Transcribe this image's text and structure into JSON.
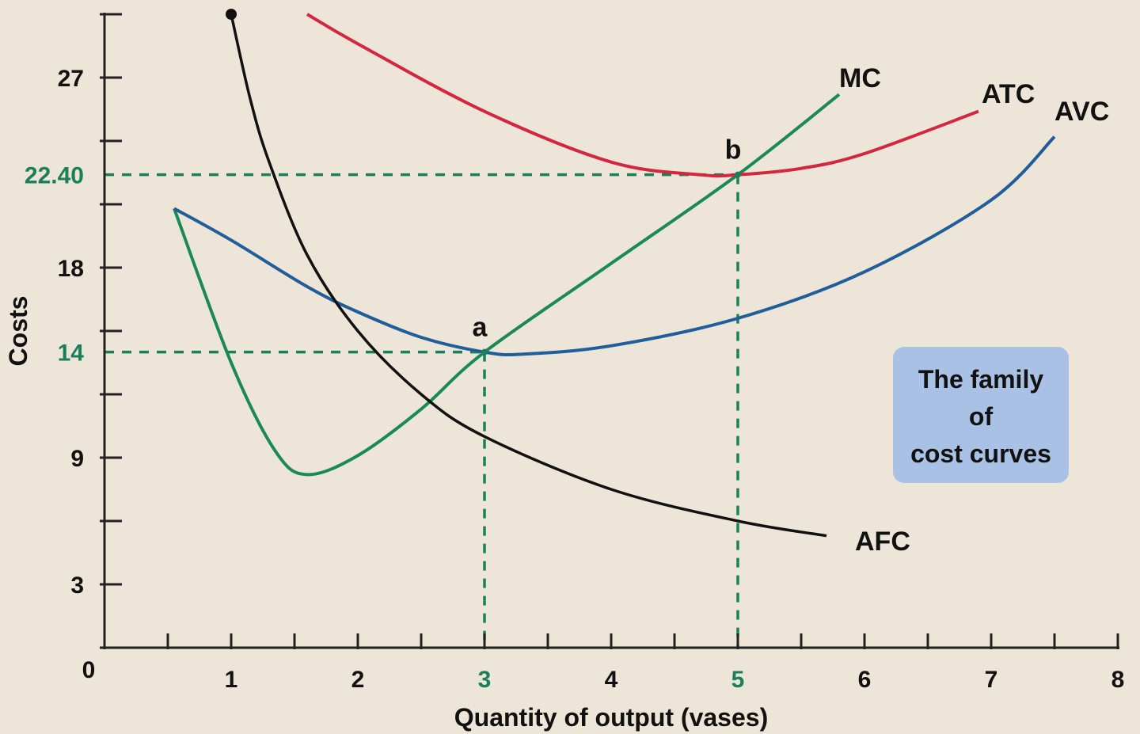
{
  "chart_data": {
    "type": "line",
    "xlabel": "Quantity of output (vases)",
    "ylabel": "Costs",
    "xlim": [
      0,
      8
    ],
    "ylim": [
      0,
      30
    ],
    "origin_label": "0",
    "x_ticks": [
      1,
      2,
      3,
      4,
      5,
      6,
      7,
      8
    ],
    "x_tick_labels": [
      "1",
      "2",
      "3",
      "4",
      "5",
      "6",
      "7",
      "8"
    ],
    "highlighted_x": [
      3,
      5
    ],
    "y_ticks": [
      3,
      9,
      18,
      27
    ],
    "y_tick_labels": [
      "3",
      "9",
      "18",
      "27"
    ],
    "highlighted_y": [
      14,
      22.4
    ],
    "highlighted_y_labels": [
      "14",
      "22.40"
    ],
    "grid": false,
    "series": [
      {
        "name": "MC",
        "color": "#1a8a55",
        "points": [
          [
            0.55,
            20.8
          ],
          [
            1.0,
            13.5
          ],
          [
            1.35,
            9.3
          ],
          [
            1.6,
            8.2
          ],
          [
            2.0,
            9.1
          ],
          [
            2.5,
            11.3
          ],
          [
            3,
            14
          ],
          [
            4,
            18.2
          ],
          [
            5,
            22.4
          ],
          [
            5.8,
            26.2
          ]
        ]
      },
      {
        "name": "ATC",
        "color": "#d3263f",
        "points": [
          [
            1.6,
            30
          ],
          [
            2,
            28.6
          ],
          [
            3,
            25.4
          ],
          [
            4,
            23.0
          ],
          [
            4.7,
            22.4
          ],
          [
            5,
            22.4
          ],
          [
            5.5,
            22.7
          ],
          [
            6,
            23.4
          ],
          [
            6.9,
            25.4
          ]
        ]
      },
      {
        "name": "AVC",
        "color": "#1f5e9a",
        "points": [
          [
            0.55,
            20.8
          ],
          [
            1,
            19.3
          ],
          [
            1.6,
            17.1
          ],
          [
            2,
            15.9
          ],
          [
            2.5,
            14.7
          ],
          [
            3,
            14
          ],
          [
            3.3,
            13.9
          ],
          [
            4,
            14.3
          ],
          [
            5,
            15.6
          ],
          [
            6,
            17.8
          ],
          [
            7,
            21.2
          ],
          [
            7.5,
            24.2
          ]
        ]
      },
      {
        "name": "AFC",
        "color": "#111111",
        "points": [
          [
            1,
            30
          ],
          [
            1.15,
            26
          ],
          [
            1.3,
            23
          ],
          [
            1.6,
            18.6
          ],
          [
            2,
            15
          ],
          [
            2.5,
            12
          ],
          [
            3,
            10
          ],
          [
            4,
            7.5
          ],
          [
            5,
            6
          ],
          [
            5.7,
            5.3
          ]
        ]
      }
    ],
    "annotations": [
      {
        "text": "a",
        "x": 3,
        "y": 14
      },
      {
        "text": "b",
        "x": 5,
        "y": 22.4
      }
    ],
    "note": "The family of cost curves",
    "note_lines": [
      "The family",
      "of",
      "cost curves"
    ],
    "colors": {
      "background": "#ede5d8",
      "highlight": "#1a7f5a",
      "note_box": "#a8c1e4"
    }
  }
}
